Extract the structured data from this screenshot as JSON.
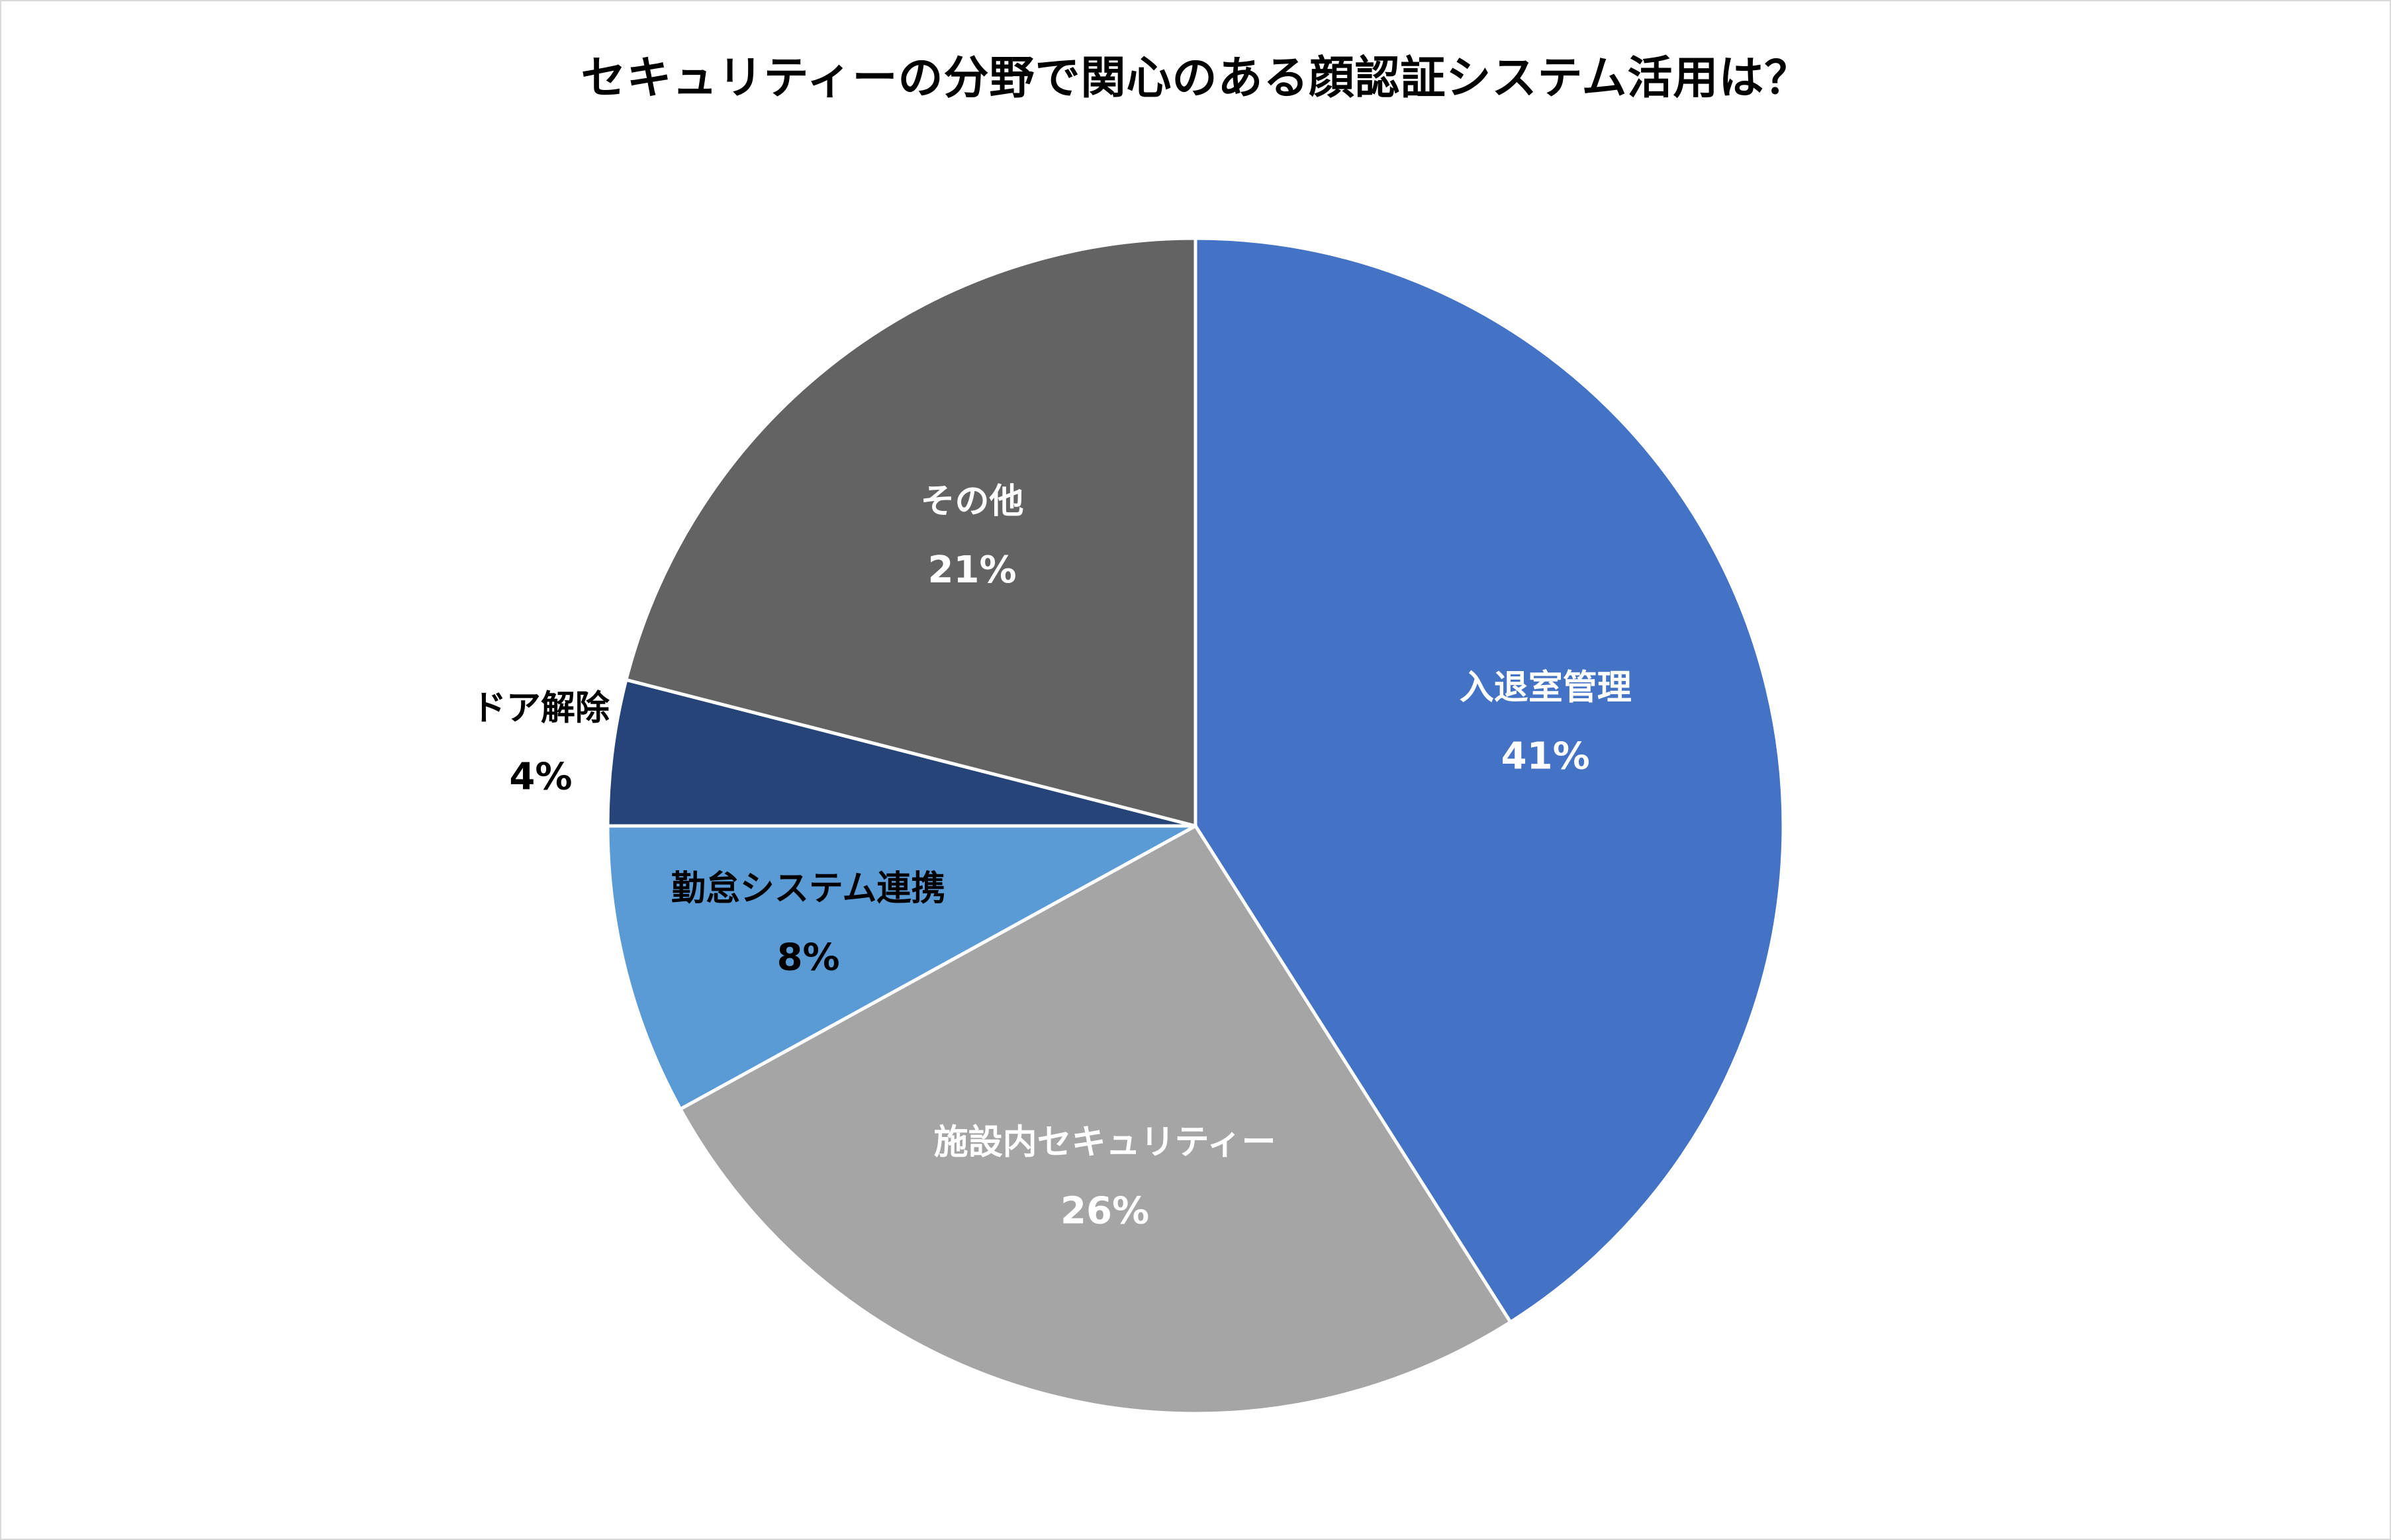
{
  "chart_data": {
    "type": "pie",
    "title": "セキュリティーの分野で関心のある顔認証システム活用は？",
    "slices": [
      {
        "label": "入退室管理",
        "value": 41,
        "value_label": "41%",
        "color": "#4472c4",
        "label_color": "#ffffff"
      },
      {
        "label": "施設内セキュリティー",
        "value": 26,
        "value_label": "26%",
        "color": "#a5a5a5",
        "label_color": "#ffffff"
      },
      {
        "label": "勤怠システム連携",
        "value": 8,
        "value_label": "8%",
        "color": "#5b9bd5",
        "label_color": "#000000"
      },
      {
        "label": "ドア解除",
        "value": 4,
        "value_label": "4%",
        "color": "#264478",
        "label_color": "#000000"
      },
      {
        "label": "その他",
        "value": 21,
        "value_label": "21%",
        "color": "#636363",
        "label_color": "#ffffff"
      }
    ],
    "legend": "none",
    "start_angle": "12 o'clock",
    "direction": "clockwise"
  }
}
